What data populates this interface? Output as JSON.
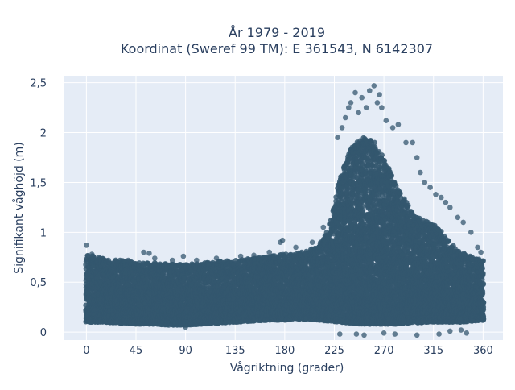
{
  "chart_data": {
    "type": "scatter",
    "title": [
      "År 1979 - 2019",
      "Koordinat (Sweref 99 TM): E 361543, N 6142307"
    ],
    "xlabel": "Vågriktning (grader)",
    "ylabel": "Signifikant våghöjd (m)",
    "xlim": [
      -20,
      378
    ],
    "ylim": [
      -0.08,
      2.57
    ],
    "x_ticks": [
      0,
      45,
      90,
      135,
      180,
      225,
      270,
      315,
      360
    ],
    "x_tick_labels": [
      "0",
      "45",
      "90",
      "135",
      "180",
      "225",
      "270",
      "315",
      "360"
    ],
    "y_ticks": [
      0,
      0.5,
      1,
      1.5,
      2,
      2.5
    ],
    "y_tick_labels": [
      "0",
      "0,5",
      "1",
      "1,5",
      "2",
      "2,5"
    ],
    "grid": true,
    "series": [
      {
        "marker_color": "#34576f",
        "density_envelope": {
          "x": [
            0,
            15,
            30,
            45,
            60,
            75,
            90,
            105,
            120,
            135,
            150,
            165,
            180,
            195,
            210,
            220,
            230,
            240,
            250,
            260,
            270,
            280,
            290,
            300,
            310,
            320,
            330,
            340,
            350,
            360
          ],
          "y_min": [
            0.1,
            0.1,
            0.09,
            0.08,
            0.08,
            0.07,
            0.07,
            0.08,
            0.09,
            0.1,
            0.11,
            0.12,
            0.12,
            0.13,
            0.12,
            0.11,
            0.1,
            0.09,
            0.08,
            0.08,
            0.08,
            0.08,
            0.09,
            0.09,
            0.1,
            0.1,
            0.1,
            0.1,
            0.11,
            0.12
          ],
          "y_max": [
            0.78,
            0.74,
            0.72,
            0.7,
            0.7,
            0.68,
            0.68,
            0.69,
            0.71,
            0.72,
            0.74,
            0.76,
            0.78,
            0.8,
            0.85,
            1.05,
            1.55,
            1.85,
            1.95,
            1.92,
            1.75,
            1.5,
            1.3,
            1.15,
            1.1,
            1.05,
            0.9,
            0.8,
            0.75,
            0.72
          ]
        },
        "outliers": [
          {
            "x": 0,
            "y": 0.87
          },
          {
            "x": 5,
            "y": 0.78
          },
          {
            "x": 12,
            "y": 0.73
          },
          {
            "x": 20,
            "y": 0.72
          },
          {
            "x": 38,
            "y": 0.72
          },
          {
            "x": 52,
            "y": 0.8
          },
          {
            "x": 57,
            "y": 0.79
          },
          {
            "x": 62,
            "y": 0.74
          },
          {
            "x": 78,
            "y": 0.72
          },
          {
            "x": 88,
            "y": 0.76
          },
          {
            "x": 100,
            "y": 0.72
          },
          {
            "x": 118,
            "y": 0.74
          },
          {
            "x": 140,
            "y": 0.76
          },
          {
            "x": 152,
            "y": 0.77
          },
          {
            "x": 166,
            "y": 0.8
          },
          {
            "x": 176,
            "y": 0.9
          },
          {
            "x": 178,
            "y": 0.92
          },
          {
            "x": 190,
            "y": 0.85
          },
          {
            "x": 205,
            "y": 0.9
          },
          {
            "x": 215,
            "y": 1.05
          },
          {
            "x": 228,
            "y": 1.95
          },
          {
            "x": 232,
            "y": 2.05
          },
          {
            "x": 235,
            "y": 2.15
          },
          {
            "x": 238,
            "y": 2.25
          },
          {
            "x": 240,
            "y": 2.3
          },
          {
            "x": 244,
            "y": 2.4
          },
          {
            "x": 247,
            "y": 2.2
          },
          {
            "x": 250,
            "y": 2.35
          },
          {
            "x": 254,
            "y": 2.25
          },
          {
            "x": 257,
            "y": 2.42
          },
          {
            "x": 261,
            "y": 2.47
          },
          {
            "x": 264,
            "y": 2.3
          },
          {
            "x": 266,
            "y": 2.38
          },
          {
            "x": 268,
            "y": 2.25
          },
          {
            "x": 272,
            "y": 2.12
          },
          {
            "x": 278,
            "y": 2.05
          },
          {
            "x": 283,
            "y": 2.08
          },
          {
            "x": 290,
            "y": 1.9
          },
          {
            "x": 296,
            "y": 1.9
          },
          {
            "x": 300,
            "y": 1.75
          },
          {
            "x": 303,
            "y": 1.6
          },
          {
            "x": 307,
            "y": 1.5
          },
          {
            "x": 312,
            "y": 1.45
          },
          {
            "x": 317,
            "y": 1.38
          },
          {
            "x": 322,
            "y": 1.35
          },
          {
            "x": 326,
            "y": 1.3
          },
          {
            "x": 330,
            "y": 1.25
          },
          {
            "x": 337,
            "y": 1.15
          },
          {
            "x": 342,
            "y": 1.1
          },
          {
            "x": 349,
            "y": 1.0
          },
          {
            "x": 355,
            "y": 0.85
          },
          {
            "x": 358,
            "y": 0.8
          },
          {
            "x": 230,
            "y": -0.02
          },
          {
            "x": 245,
            "y": -0.02
          },
          {
            "x": 252,
            "y": -0.03
          },
          {
            "x": 270,
            "y": -0.01
          },
          {
            "x": 280,
            "y": -0.02
          },
          {
            "x": 300,
            "y": -0.03
          },
          {
            "x": 320,
            "y": -0.02
          },
          {
            "x": 330,
            "y": 0.01
          },
          {
            "x": 340,
            "y": 0.02
          },
          {
            "x": 345,
            "y": -0.01
          },
          {
            "x": 90,
            "y": 0.05
          }
        ]
      }
    ]
  }
}
